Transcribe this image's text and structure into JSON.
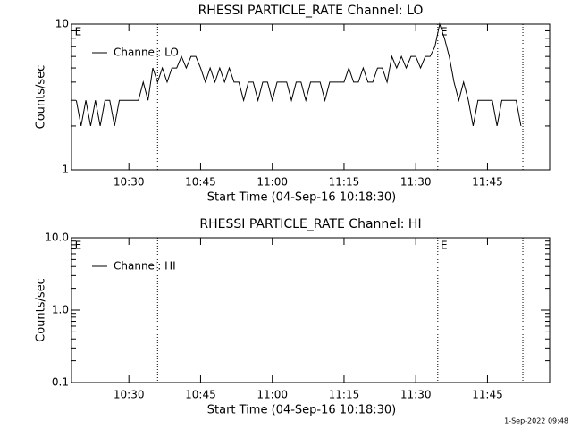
{
  "chart_data": [
    {
      "type": "line",
      "title": "RHESSI PARTICLE_RATE Channel: LO",
      "xlabel": "Start Time (04-Sep-16 10:18:30)",
      "ylabel": "Counts/sec",
      "log_y": true,
      "xlim": [
        618,
        718
      ],
      "ylim": [
        1,
        10
      ],
      "xticks": [
        {
          "value": 630,
          "label": "10:30"
        },
        {
          "value": 645,
          "label": "10:45"
        },
        {
          "value": 660,
          "label": "11:00"
        },
        {
          "value": 675,
          "label": "11:15"
        },
        {
          "value": 690,
          "label": "11:30"
        },
        {
          "value": 705,
          "label": "11:45"
        }
      ],
      "yticks": [
        1,
        10
      ],
      "minor_yticks": [
        2,
        3,
        4,
        5,
        6,
        7,
        8,
        9
      ],
      "vlines": [
        636,
        694.6,
        712.4
      ],
      "annotations": [
        {
          "text": "E",
          "x": 618.5
        },
        {
          "text": "E",
          "x": 695
        }
      ],
      "legend": "upper left",
      "x": [
        619,
        620,
        621,
        622,
        623,
        624,
        625,
        626,
        627,
        628,
        629,
        630,
        631,
        632,
        633,
        634,
        635,
        636,
        637,
        638,
        639,
        640,
        641,
        642,
        643,
        644,
        645,
        646,
        647,
        648,
        649,
        650,
        651,
        652,
        653,
        654,
        655,
        656,
        657,
        658,
        659,
        660,
        661,
        662,
        663,
        664,
        665,
        666,
        667,
        668,
        669,
        670,
        671,
        672,
        673,
        674,
        675,
        676,
        677,
        678,
        679,
        680,
        681,
        682,
        683,
        684,
        685,
        686,
        687,
        688,
        689,
        690,
        691,
        692,
        693,
        694,
        695,
        696,
        697,
        698,
        699,
        700,
        701,
        702,
        703,
        704,
        705,
        706,
        707,
        708,
        709,
        710,
        711,
        712
      ],
      "series": [
        {
          "name": "Channel: LO",
          "color": "#000000",
          "values": [
            3,
            2,
            3,
            2,
            3,
            2,
            3,
            3,
            2,
            3,
            3,
            3,
            3,
            3,
            4,
            3,
            5,
            4,
            5,
            4,
            5,
            5,
            6,
            5,
            6,
            6,
            5,
            4,
            5,
            4,
            5,
            4,
            5,
            4,
            4,
            3,
            4,
            4,
            3,
            4,
            4,
            3,
            4,
            4,
            4,
            3,
            4,
            4,
            3,
            4,
            4,
            4,
            3,
            4,
            4,
            4,
            4,
            5,
            4,
            4,
            5,
            4,
            4,
            5,
            5,
            4,
            6,
            5,
            6,
            5,
            6,
            6,
            5,
            6,
            6,
            7,
            10,
            8,
            6,
            4,
            3,
            4,
            3,
            2,
            3,
            3,
            3,
            3,
            2,
            3,
            3,
            3,
            3,
            2
          ]
        }
      ]
    },
    {
      "type": "line",
      "title": "RHESSI PARTICLE_RATE Channel: HI",
      "xlabel": "Start Time (04-Sep-16 10:18:30)",
      "ylabel": "Counts/sec",
      "log_y": true,
      "xlim": [
        618,
        718
      ],
      "ylim": [
        0.1,
        10
      ],
      "xticks": [
        {
          "value": 630,
          "label": "10:30"
        },
        {
          "value": 645,
          "label": "10:45"
        },
        {
          "value": 660,
          "label": "11:00"
        },
        {
          "value": 675,
          "label": "11:15"
        },
        {
          "value": 690,
          "label": "11:30"
        },
        {
          "value": 705,
          "label": "11:45"
        }
      ],
      "yticks": [
        0.1,
        {
          "value": 1,
          "label": "1.0"
        },
        {
          "value": 10,
          "label": "10.0"
        }
      ],
      "minor_yticks": [
        0.2,
        0.3,
        0.4,
        0.5,
        0.6,
        0.7,
        0.8,
        0.9,
        2,
        3,
        4,
        5,
        6,
        7,
        8,
        9
      ],
      "vlines": [
        636,
        694.6,
        712.4
      ],
      "annotations": [
        {
          "text": "E",
          "x": 618.5
        },
        {
          "text": "E",
          "x": 695
        }
      ],
      "legend": "upper left",
      "x": [],
      "series": [
        {
          "name": "Channel: HI",
          "color": "#000000",
          "values": []
        }
      ]
    }
  ],
  "footer": "1-Sep-2022 09:48"
}
